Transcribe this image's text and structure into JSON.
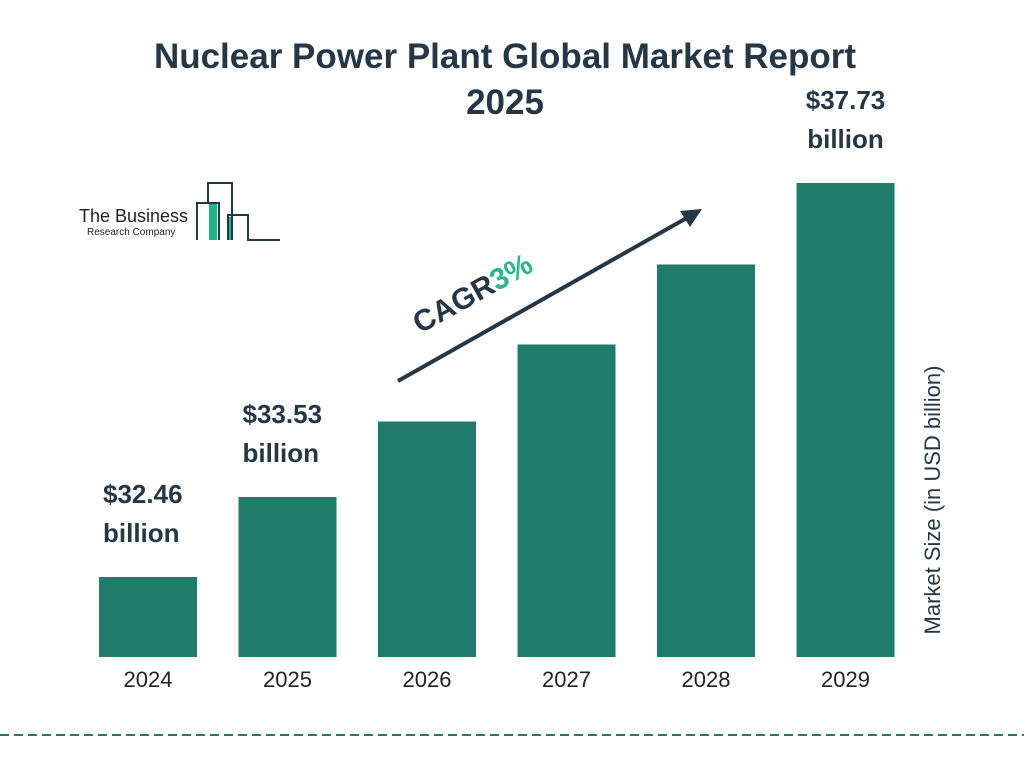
{
  "title_line1": "Nuclear Power Plant Global Market Report",
  "title_line2": "2025",
  "logo": {
    "line1": "The Business",
    "line2": "Research Company"
  },
  "chart_data": {
    "type": "bar",
    "title": "Nuclear Power Plant Global Market Report 2025",
    "categories": [
      "2024",
      "2025",
      "2026",
      "2027",
      "2028",
      "2029"
    ],
    "values": [
      32.46,
      33.53,
      34.54,
      35.57,
      36.64,
      37.73
    ],
    "data_labels": [
      {
        "index": 0,
        "line1": "$32.46",
        "line2": "billion"
      },
      {
        "index": 1,
        "line1": "$33.53",
        "line2": "billion"
      },
      {
        "index": 5,
        "line1": "$37.73",
        "line2": "billion"
      }
    ],
    "ylabel": "Market Size (in USD billion)",
    "xlabel": "",
    "annotation": {
      "text": "CAGR",
      "value": "3%"
    },
    "grid": false,
    "bar_color": "#217b6b",
    "text_color": "#253746",
    "accent_color": "#2bb58a"
  }
}
